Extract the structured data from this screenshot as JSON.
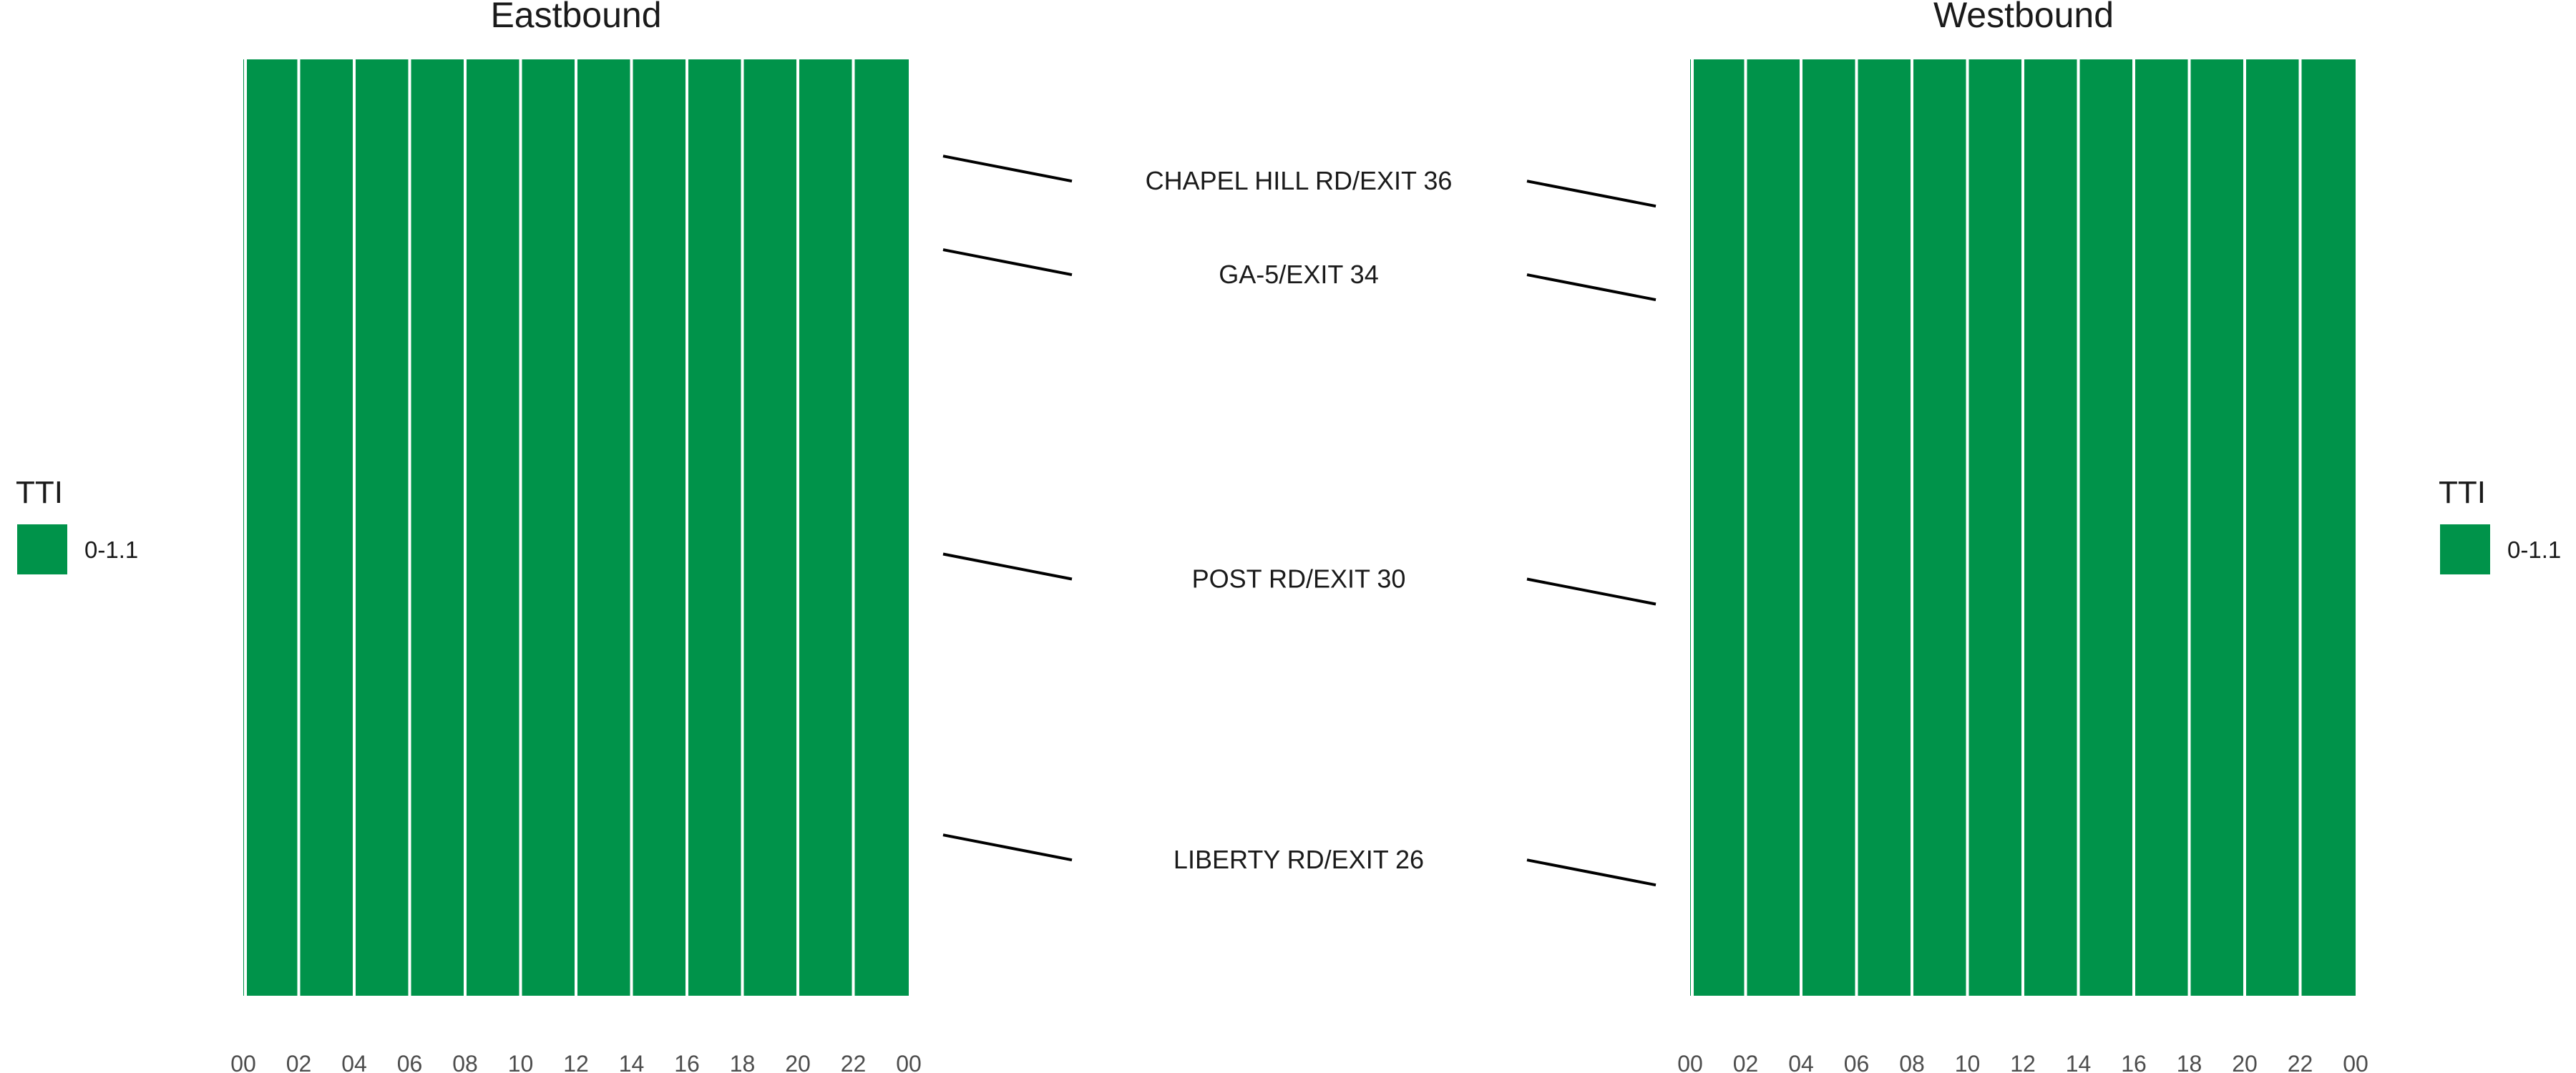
{
  "chart_data": [
    {
      "type": "heatmap",
      "title": "Eastbound",
      "x": [
        "00",
        "02",
        "04",
        "06",
        "08",
        "10",
        "12",
        "14",
        "16",
        "18",
        "20",
        "22",
        "00"
      ],
      "legend": {
        "title": "TTI",
        "entries": [
          {
            "label": "0-1.1",
            "color": "#00934a"
          }
        ],
        "placement": "left"
      },
      "cell_value": "0-1.1"
    },
    {
      "type": "heatmap",
      "title": "Westbound",
      "x": [
        "00",
        "02",
        "04",
        "06",
        "08",
        "10",
        "12",
        "14",
        "16",
        "18",
        "20",
        "22",
        "00"
      ],
      "legend": {
        "title": "TTI",
        "entries": [
          {
            "label": "0-1.1",
            "color": "#00934a"
          }
        ],
        "placement": "right"
      },
      "cell_value": "0-1.1"
    }
  ],
  "exits": [
    {
      "label": "CHAPEL HILL RD/EXIT 36",
      "position": 0.13
    },
    {
      "label": "GA-5/EXIT 34",
      "position": 0.23
    },
    {
      "label": "POST RD/EXIT 30",
      "position": 0.555
    },
    {
      "label": "LIBERTY RD/EXIT 26",
      "position": 0.855
    }
  ],
  "colors": {
    "fill": "#00934a",
    "grid": "#ffffff",
    "connector": "#000000"
  }
}
